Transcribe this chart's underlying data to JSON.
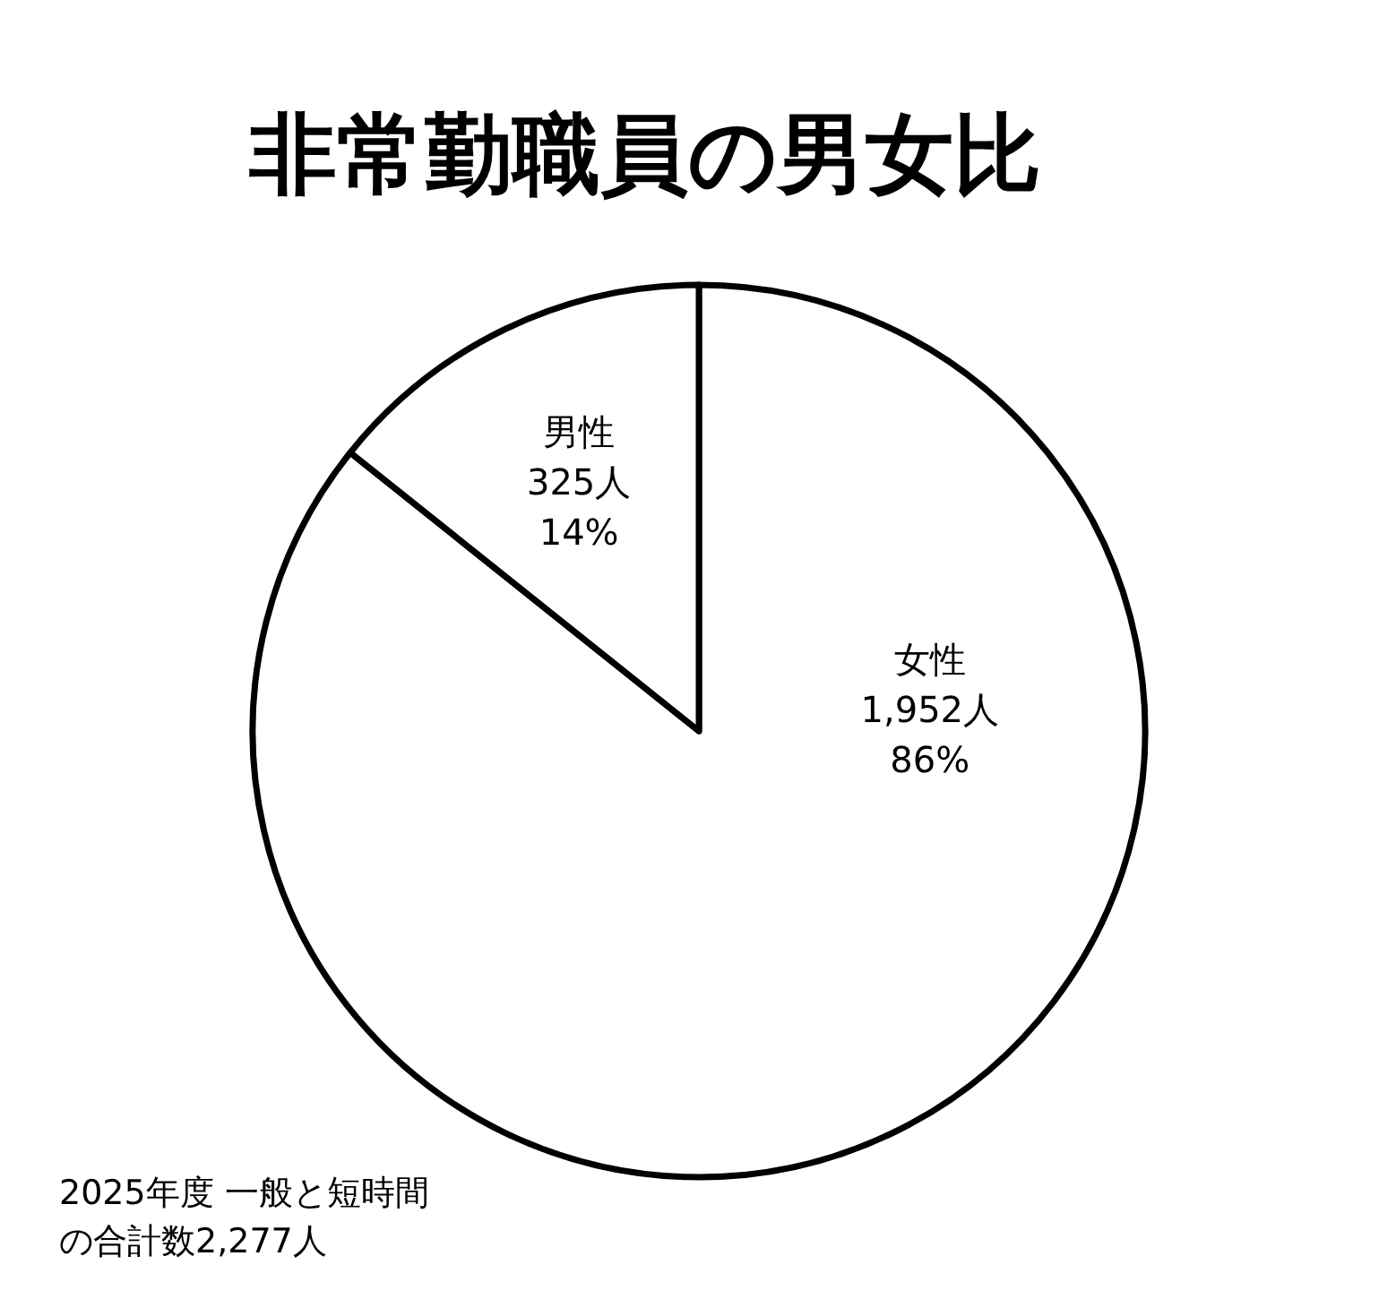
{
  "chart_data": {
    "type": "pie",
    "title": "非常勤職員の男女比",
    "categories": [
      "女性",
      "男性"
    ],
    "values": [
      1952,
      325
    ],
    "value_labels": [
      "1,952人\n86%",
      "325人\n14%"
    ],
    "colors": [
      "#ffffff",
      "#ffffff"
    ],
    "annotations": [
      "2025年度 一般と短時間の合計数2,277人"
    ]
  }
}
